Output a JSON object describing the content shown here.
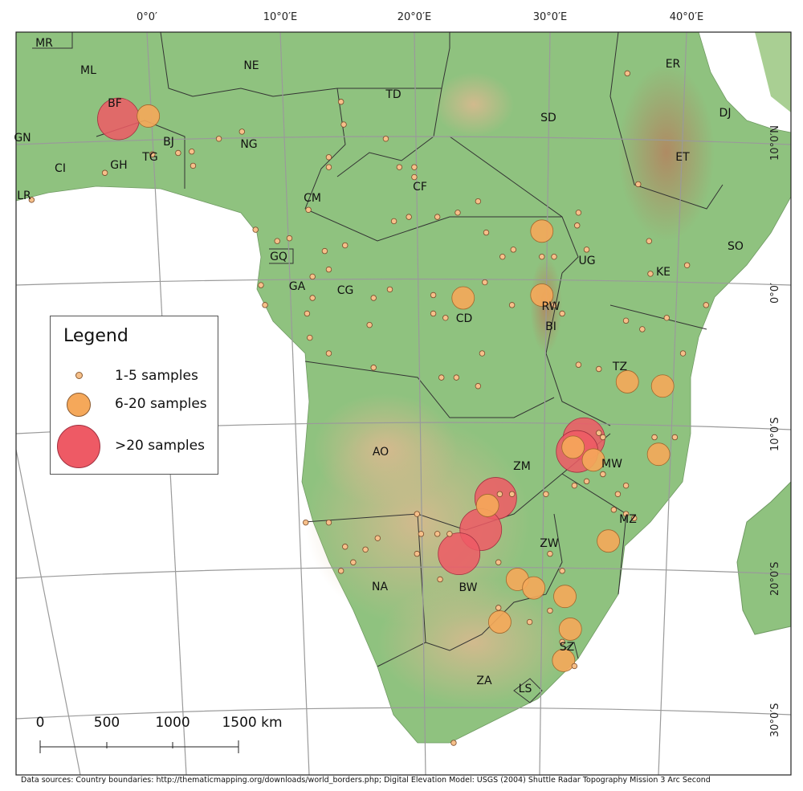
{
  "lon_labels": [
    "0°0′",
    "10°0′E",
    "20°0′E",
    "30°0′E",
    "40°0′E"
  ],
  "lat_labels": [
    "10°0′N",
    "0°0′",
    "10°0′S",
    "20°0′S",
    "30°0′S"
  ],
  "countries": [
    "MR",
    "ML",
    "NE",
    "TD",
    "SD",
    "ER",
    "DJ",
    "BF",
    "GN",
    "BJ",
    "NG",
    "ET",
    "CI",
    "GH",
    "TG",
    "CF",
    "CM",
    "SO",
    "GQ",
    "UG",
    "KE",
    "GA",
    "CG",
    "CD",
    "RW",
    "BI",
    "TZ",
    "AO",
    "ZM",
    "MW",
    "MZ",
    "ZW",
    "NA",
    "BW",
    "SZ",
    "ZA",
    "LS",
    "LR"
  ],
  "legend": {
    "title": "Legend",
    "items": [
      {
        "label": "1-5 samples",
        "color": "#f6c08a"
      },
      {
        "label": "6-20 samples",
        "color": "#f5a85a"
      },
      {
        "label": ">20 samples",
        "color": "#ee5a65"
      }
    ]
  },
  "scale_bar": {
    "labels": [
      "0",
      "500",
      "1000",
      "1500 km"
    ]
  },
  "footer": "Data sources: Country boundaries: http://thematicmapping.org/downloads/world_borders.php; Digital Elevation Model: USGS (2004) Shuttle Radar Topography Mission 3 Arc Second",
  "colors": {
    "land": "#8fc27f",
    "water": "#ffffff",
    "grid": "#9a9a9a",
    "large": "#ee5a65",
    "medium": "#f5a85a",
    "small": "#f6c08a"
  },
  "samples": {
    "large": [
      [
        -2.1,
        11.3
      ],
      [
        32.2,
        -11.2
      ],
      [
        31.7,
        -12.1
      ],
      [
        25.7,
        -15.4
      ],
      [
        24.6,
        -17.6
      ],
      [
        23.0,
        -19.3
      ]
    ],
    "medium": [
      [
        0.1,
        11.5
      ],
      [
        29.1,
        3.4
      ],
      [
        23.3,
        -1.3
      ],
      [
        29.1,
        -1.1
      ],
      [
        35.4,
        -7.2
      ],
      [
        38.0,
        -7.5
      ],
      [
        31.4,
        -11.8
      ],
      [
        32.9,
        -12.7
      ],
      [
        37.7,
        -12.3
      ],
      [
        25.1,
        -15.9
      ],
      [
        34.0,
        -18.4
      ],
      [
        27.3,
        -21.1
      ],
      [
        28.5,
        -21.7
      ],
      [
        30.8,
        -22.3
      ],
      [
        31.2,
        -24.6
      ],
      [
        26.0,
        -24.1
      ],
      [
        30.7,
        -26.8
      ]
    ],
    "small": [
      [
        14.3,
        12.5
      ],
      [
        14.5,
        10.9
      ],
      [
        17.6,
        9.9
      ],
      [
        7.0,
        10.4
      ],
      [
        5.3,
        9.9
      ],
      [
        3.3,
        9.0
      ],
      [
        2.3,
        8.9
      ],
      [
        0.4,
        8.8
      ],
      [
        -3.1,
        7.5
      ],
      [
        -8.5,
        5.6
      ],
      [
        3.4,
        8.0
      ],
      [
        13.4,
        8.6
      ],
      [
        13.4,
        7.9
      ],
      [
        18.6,
        7.9
      ],
      [
        19.7,
        7.9
      ],
      [
        19.7,
        7.2
      ],
      [
        11.9,
        4.9
      ],
      [
        10.5,
        2.9
      ],
      [
        8.0,
        3.5
      ],
      [
        9.6,
        2.7
      ],
      [
        13.1,
        2.0
      ],
      [
        14.6,
        2.4
      ],
      [
        8.4,
        -0.4
      ],
      [
        8.7,
        -1.8
      ],
      [
        12.2,
        0.2
      ],
      [
        13.4,
        0.7
      ],
      [
        12.2,
        -1.3
      ],
      [
        11.8,
        -2.4
      ],
      [
        13.4,
        -5.2
      ],
      [
        12.0,
        -4.1
      ],
      [
        16.7,
        -1.3
      ],
      [
        17.9,
        -0.7
      ],
      [
        16.4,
        -3.2
      ],
      [
        16.7,
        -6.2
      ],
      [
        21.1,
        -1.1
      ],
      [
        22.0,
        -2.7
      ],
      [
        21.1,
        -2.4
      ],
      [
        24.9,
        -0.2
      ],
      [
        26.2,
        1.6
      ],
      [
        27.0,
        2.1
      ],
      [
        29.1,
        1.6
      ],
      [
        30.0,
        1.6
      ],
      [
        31.8,
        4.7
      ],
      [
        31.7,
        3.8
      ],
      [
        32.4,
        2.1
      ],
      [
        24.4,
        5.5
      ],
      [
        22.9,
        4.7
      ],
      [
        21.4,
        4.4
      ],
      [
        19.3,
        4.4
      ],
      [
        18.2,
        4.1
      ],
      [
        25.0,
        3.3
      ],
      [
        26.9,
        -1.8
      ],
      [
        30.0,
        -1.8
      ],
      [
        30.6,
        -2.4
      ],
      [
        31.8,
        -6.0
      ],
      [
        33.3,
        -6.3
      ],
      [
        35.3,
        -2.9
      ],
      [
        36.5,
        -3.5
      ],
      [
        39.5,
        -5.2
      ],
      [
        39.8,
        1.0
      ],
      [
        37.1,
        0.4
      ],
      [
        38.3,
        -2.7
      ],
      [
        41.2,
        -1.8
      ],
      [
        36.2,
        6.7
      ],
      [
        35.4,
        14.5
      ],
      [
        37.0,
        2.7
      ],
      [
        21.7,
        -6.9
      ],
      [
        22.8,
        -6.9
      ],
      [
        33.3,
        -10.8
      ],
      [
        37.4,
        -11.1
      ],
      [
        38.9,
        -11.1
      ],
      [
        33.6,
        -13.7
      ],
      [
        31.5,
        -14.5
      ],
      [
        32.4,
        -14.2
      ],
      [
        35.3,
        -14.5
      ],
      [
        34.4,
        -16.2
      ],
      [
        19.9,
        -16.5
      ],
      [
        20.2,
        -17.9
      ],
      [
        21.4,
        -17.9
      ],
      [
        22.3,
        -17.9
      ],
      [
        17.0,
        -18.2
      ],
      [
        15.2,
        -19.9
      ],
      [
        14.6,
        -18.8
      ],
      [
        13.4,
        -17.1
      ],
      [
        11.7,
        -17.1
      ],
      [
        16.1,
        -19.0
      ],
      [
        14.3,
        -20.5
      ],
      [
        19.9,
        -19.3
      ],
      [
        21.6,
        -21.1
      ],
      [
        25.9,
        -19.9
      ],
      [
        29.7,
        -19.3
      ],
      [
        30.6,
        -20.5
      ],
      [
        29.7,
        -23.3
      ],
      [
        28.2,
        -24.1
      ],
      [
        25.9,
        -23.1
      ],
      [
        22.6,
        -32.6
      ],
      [
        30.6,
        -25.5
      ],
      [
        31.5,
        -27.2
      ],
      [
        35.3,
        -16.5
      ],
      [
        26.9,
        -15.1
      ],
      [
        26.0,
        -15.1
      ],
      [
        33.6,
        -11.1
      ],
      [
        34.7,
        -15.1
      ],
      [
        29.4,
        -15.1
      ],
      [
        35.9,
        -16.8
      ],
      [
        24.7,
        -5.2
      ],
      [
        24.4,
        -7.5
      ]
    ]
  }
}
